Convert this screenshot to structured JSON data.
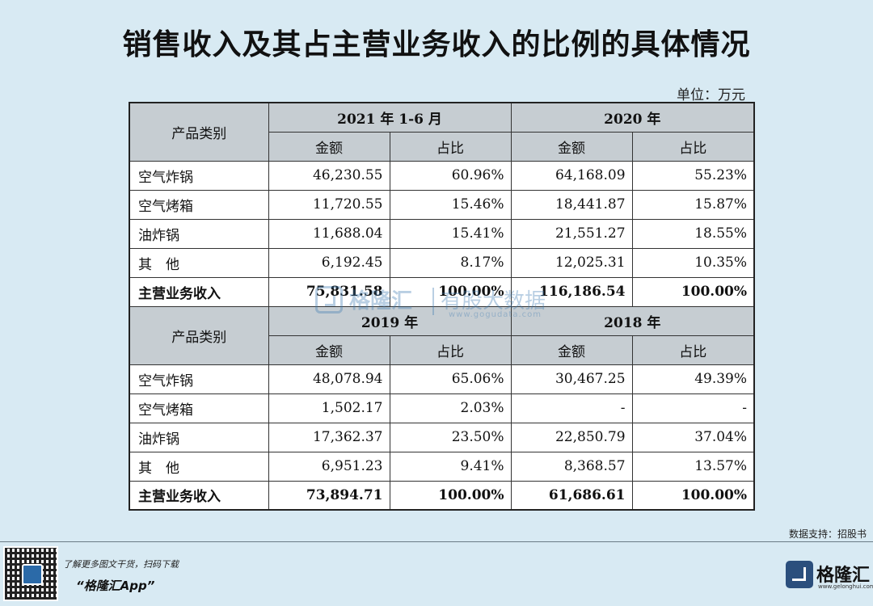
{
  "title": "销售收入及其占主营业务收入的比例的具体情况",
  "unit": "单位：万元",
  "sections": [
    {
      "category_header": "产品类别",
      "periods": [
        "2021 年 1-6 月",
        "2020 年"
      ],
      "col_amount": "金额",
      "col_share": "占比",
      "rows": [
        {
          "name": "空气炸锅",
          "v": [
            "46,230.55",
            "60.96%",
            "64,168.09",
            "55.23%"
          ]
        },
        {
          "name": "空气烤箱",
          "v": [
            "11,720.55",
            "15.46%",
            "18,441.87",
            "15.87%"
          ]
        },
        {
          "name": "油炸锅",
          "v": [
            "11,688.04",
            "15.41%",
            "21,551.27",
            "18.55%"
          ]
        },
        {
          "name": "其　他",
          "v": [
            "6,192.45",
            "8.17%",
            "12,025.31",
            "10.35%"
          ]
        }
      ],
      "total": {
        "name": "主营业务收入",
        "v": [
          "75,831.58",
          "100.00%",
          "116,186.54",
          "100.00%"
        ]
      }
    },
    {
      "category_header": "产品类别",
      "periods": [
        "2019 年",
        "2018 年"
      ],
      "col_amount": "金额",
      "col_share": "占比",
      "rows": [
        {
          "name": "空气炸锅",
          "v": [
            "48,078.94",
            "65.06%",
            "30,467.25",
            "49.39%"
          ]
        },
        {
          "name": "空气烤箱",
          "v": [
            "1,502.17",
            "2.03%",
            "-",
            "-"
          ]
        },
        {
          "name": "油炸锅",
          "v": [
            "17,362.37",
            "23.50%",
            "22,850.79",
            "37.04%"
          ]
        },
        {
          "name": "其　他",
          "v": [
            "6,951.23",
            "9.41%",
            "8,368.57",
            "13.57%"
          ]
        }
      ],
      "total": {
        "name": "主营业务收入",
        "v": [
          "73,894.71",
          "100.00%",
          "61,686.61",
          "100.00%"
        ]
      }
    }
  ],
  "watermark": {
    "brand": "格隆汇",
    "product": "有股大数据",
    "url": "www.gogudata.com"
  },
  "source": "数据支持：招股书",
  "footer": {
    "promo_line1": "了解更多图文干货，扫码下载",
    "promo_line2": "“格隆汇App”",
    "brand_name": "格隆汇",
    "brand_url": "www.gelonghui.com"
  },
  "colors": {
    "background": "#d8eaf3",
    "header_fill": "#c6cdd2",
    "brand_blue": "#2b6aa8"
  },
  "icons": {
    "qr": "qr-code-icon",
    "brand": "gelonghui-logo-icon"
  }
}
